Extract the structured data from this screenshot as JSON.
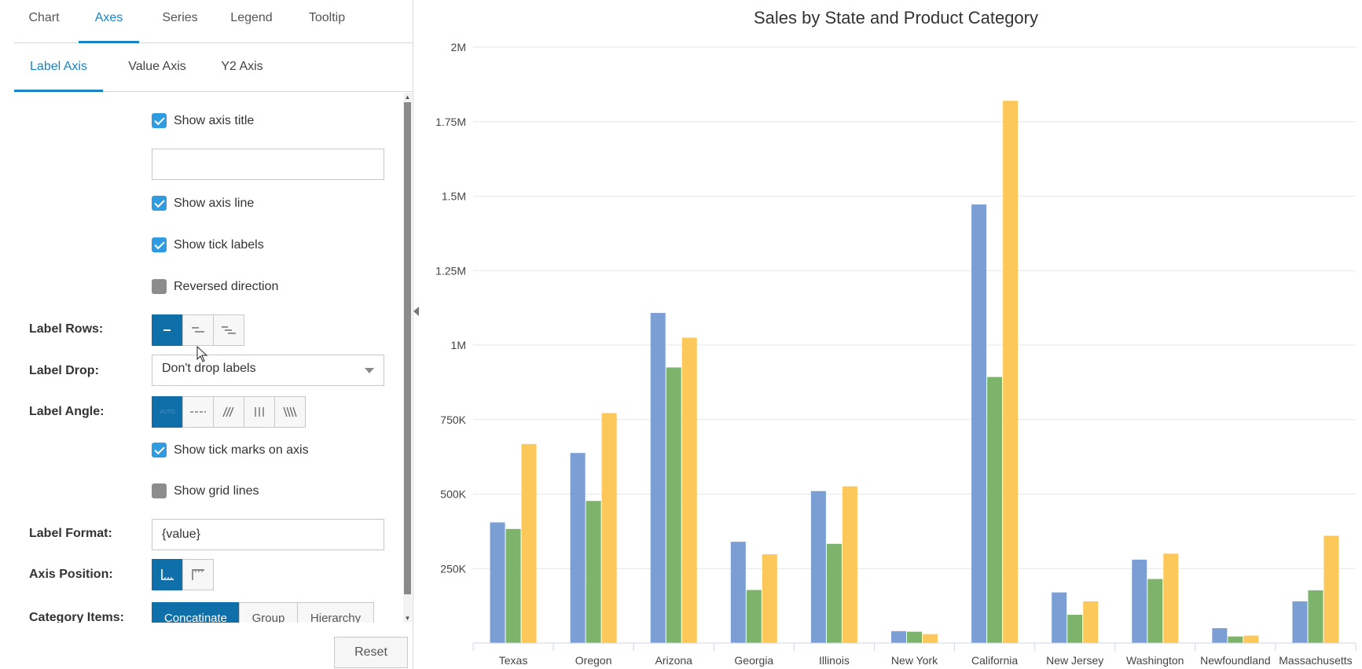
{
  "tabs": [
    {
      "label": "Chart",
      "active": false
    },
    {
      "label": "Axes",
      "active": true
    },
    {
      "label": "Series",
      "active": false
    },
    {
      "label": "Legend",
      "active": false
    },
    {
      "label": "Tooltip",
      "active": false
    }
  ],
  "subtabs": [
    {
      "label": "Label Axis",
      "active": true
    },
    {
      "label": "Value Axis",
      "active": false
    },
    {
      "label": "Y2 Axis",
      "active": false
    }
  ],
  "settings": {
    "show_axis_title": {
      "label": "Show axis title",
      "checked": true
    },
    "axis_title_value": "",
    "show_axis_line": {
      "label": "Show axis line",
      "checked": true
    },
    "show_tick_labels": {
      "label": "Show tick labels",
      "checked": true
    },
    "reversed_direction": {
      "label": "Reversed direction",
      "checked": false
    },
    "label_rows": {
      "label": "Label Rows:",
      "options": [
        "one-row-icon",
        "two-rows-icon",
        "three-rows-icon"
      ],
      "selected": 0
    },
    "label_drop": {
      "label": "Label Drop:",
      "value": "Don't drop labels"
    },
    "label_angle": {
      "label": "Label Angle:",
      "options": [
        "auto-angle-icon",
        "horizontal-angle-icon",
        "diagonal-up-icon",
        "vertical-angle-icon",
        "diagonal-down-icon"
      ],
      "selected": 0,
      "auto_text": "AUTO"
    },
    "show_tick_marks": {
      "label": "Show tick marks on axis",
      "checked": true
    },
    "show_grid_lines": {
      "label": "Show grid lines",
      "checked": false
    },
    "label_format": {
      "label": "Label Format:",
      "value": "{value}"
    },
    "axis_position": {
      "label": "Axis Position:",
      "options": [
        "axis-bottom-icon",
        "axis-top-icon"
      ],
      "selected": 0
    },
    "category_items": {
      "label": "Category Items:",
      "options": [
        "Concatinate",
        "Group",
        "Hierarchy"
      ],
      "selected": 0
    }
  },
  "reset_label": "Reset",
  "chart_data": {
    "type": "bar",
    "title": "Sales by State and Product Category",
    "xlabel": "",
    "ylabel": "",
    "ylim": [
      0,
      2000000
    ],
    "yticks": [
      250000,
      500000,
      750000,
      1000000,
      1250000,
      1500000,
      1750000,
      2000000
    ],
    "ytick_labels": [
      "250K",
      "500K",
      "750K",
      "1M",
      "1.25M",
      "1.5M",
      "1.75M",
      "2M"
    ],
    "grid": true,
    "legend": "none",
    "categories": [
      "Texas",
      "Oregon",
      "Arizona",
      "Georgia",
      "Illinois",
      "New York",
      "California",
      "New Jersey",
      "Washington",
      "Newfoundland",
      "Massachusetts"
    ],
    "series": [
      {
        "color": "#7b9fd4",
        "values": [
          405000,
          638000,
          1108000,
          340000,
          510000,
          40000,
          1472000,
          170000,
          280000,
          50000,
          140000
        ]
      },
      {
        "color": "#7db36b",
        "values": [
          383000,
          477000,
          925000,
          178000,
          333000,
          38000,
          893000,
          95000,
          215000,
          22000,
          177000
        ]
      },
      {
        "color": "#fdc85a",
        "values": [
          668000,
          772000,
          1025000,
          298000,
          526000,
          30000,
          1820000,
          140000,
          300000,
          25000,
          360000
        ]
      }
    ]
  }
}
